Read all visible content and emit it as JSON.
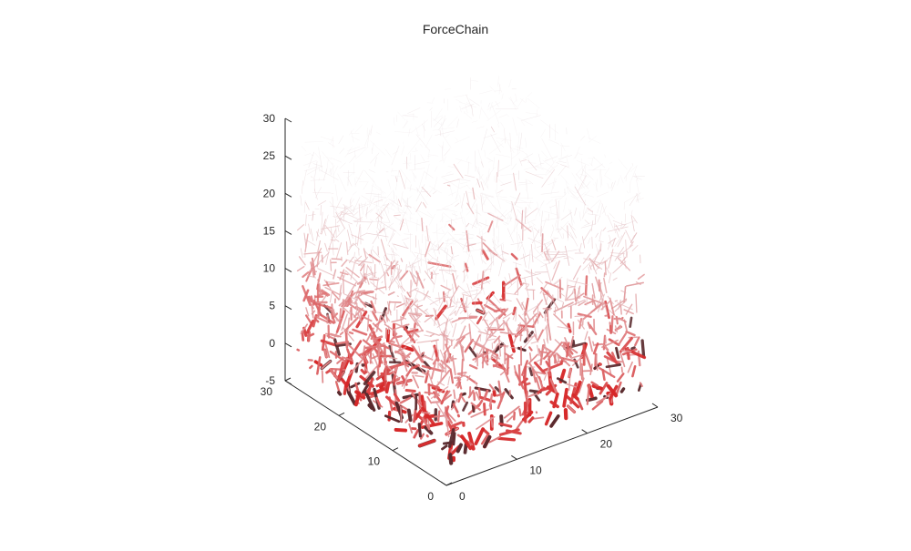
{
  "chart_data": {
    "type": "3d-network",
    "title": "ForceChain",
    "xlabel": "",
    "ylabel": "",
    "zlabel": "",
    "x_ticks": [
      "0",
      "10",
      "20",
      "30"
    ],
    "y_ticks": [
      "0",
      "10",
      "20",
      "30"
    ],
    "z_ticks": [
      "-5",
      "0",
      "5",
      "10",
      "15",
      "20",
      "25",
      "30"
    ],
    "xlim": [
      0,
      30
    ],
    "ylim": [
      0,
      30
    ],
    "zlim": [
      -5,
      30
    ],
    "grid": false,
    "colormap": {
      "low": "#e8dde0",
      "high": "#d62728",
      "dark": "#5a2a2e"
    },
    "note_values": "Network of contact-force segments filling the cube; segment thickness and red intensity increase toward the bottom of the sample."
  }
}
